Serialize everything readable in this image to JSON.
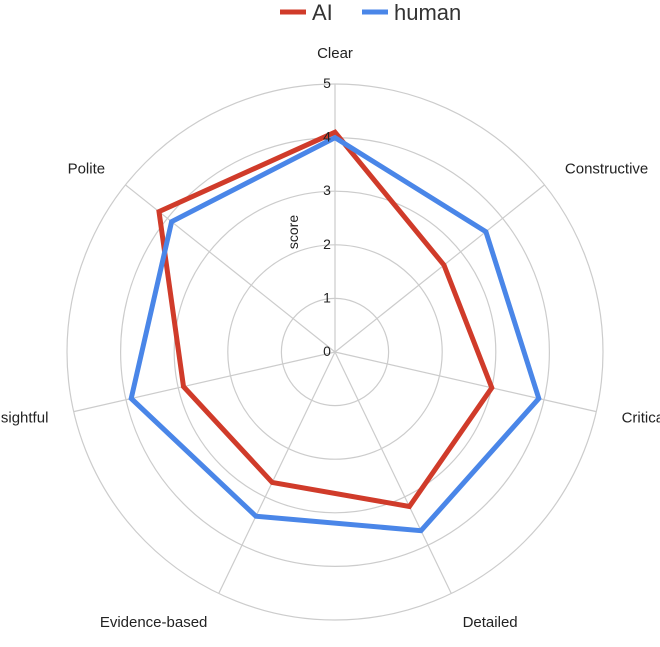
{
  "chart_data": {
    "type": "radar",
    "categories": [
      "Clear",
      "Constructive",
      "Critical",
      "Detailed",
      "Evidence-based",
      "Insightful",
      "Polite"
    ],
    "series": [
      {
        "name": "AI",
        "color": "#d03b2a",
        "values": [
          4.1,
          2.6,
          3.0,
          3.2,
          2.7,
          2.9,
          4.2
        ]
      },
      {
        "name": "human",
        "color": "#4a86e8",
        "values": [
          4.0,
          3.6,
          3.9,
          3.7,
          3.4,
          3.9,
          3.9
        ]
      }
    ],
    "rlim": [
      0,
      5
    ],
    "ticks": [
      0,
      1,
      2,
      3,
      4,
      5
    ],
    "ylabel": "score",
    "legend_position": "top",
    "grid": true,
    "grid_color": "#cccccc"
  }
}
